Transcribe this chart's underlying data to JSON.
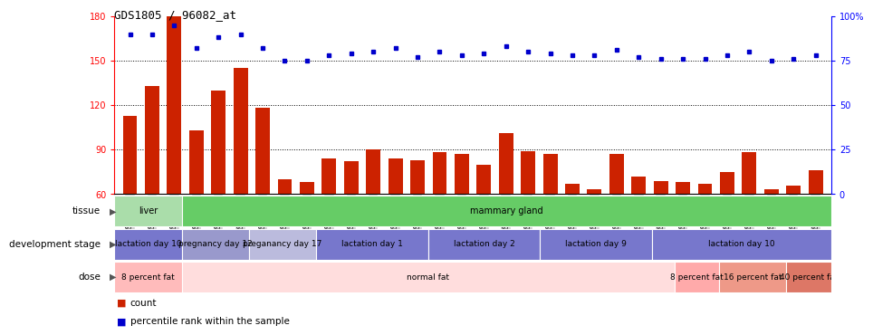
{
  "title": "GDS1805 / 96082_at",
  "samples": [
    "GSM96229",
    "GSM96230",
    "GSM96231",
    "GSM96217",
    "GSM96218",
    "GSM96219",
    "GSM96220",
    "GSM96225",
    "GSM96226",
    "GSM96227",
    "GSM96228",
    "GSM96221",
    "GSM96222",
    "GSM96223",
    "GSM96224",
    "GSM96209",
    "GSM96210",
    "GSM96211",
    "GSM96212",
    "GSM96213",
    "GSM96214",
    "GSM96215",
    "GSM96216",
    "GSM96203",
    "GSM96204",
    "GSM96205",
    "GSM96206",
    "GSM96207",
    "GSM96208",
    "GSM96200",
    "GSM96201",
    "GSM96202"
  ],
  "counts": [
    113,
    133,
    180,
    103,
    130,
    145,
    118,
    70,
    68,
    84,
    82,
    90,
    84,
    83,
    88,
    87,
    80,
    101,
    89,
    87,
    67,
    63,
    87,
    72,
    69,
    68,
    67,
    75,
    88,
    63,
    66,
    76
  ],
  "percentile_ranks": [
    90,
    90,
    95,
    82,
    88,
    90,
    82,
    75,
    75,
    78,
    79,
    80,
    82,
    77,
    80,
    78,
    79,
    83,
    80,
    79,
    78,
    78,
    81,
    77,
    76,
    76,
    76,
    78,
    80,
    75,
    76,
    78
  ],
  "ylim_left": [
    60,
    180
  ],
  "ylim_right": [
    0,
    100
  ],
  "yticks_left": [
    60,
    90,
    120,
    150,
    180
  ],
  "yticks_right": [
    0,
    25,
    50,
    75,
    100
  ],
  "bar_color": "#cc2200",
  "dot_color": "#0000cc",
  "tissue_segments": [
    {
      "label": "liver",
      "start": 0,
      "end": 3,
      "color": "#aaddaa"
    },
    {
      "label": "mammary gland",
      "start": 3,
      "end": 32,
      "color": "#66cc66"
    }
  ],
  "dev_segments": [
    {
      "label": "lactation day 10",
      "start": 0,
      "end": 3,
      "color": "#7777cc"
    },
    {
      "label": "pregnancy day 12",
      "start": 3,
      "end": 6,
      "color": "#9999cc"
    },
    {
      "label": "preganancy day 17",
      "start": 6,
      "end": 9,
      "color": "#bbbbdd"
    },
    {
      "label": "lactation day 1",
      "start": 9,
      "end": 14,
      "color": "#7777cc"
    },
    {
      "label": "lactation day 2",
      "start": 14,
      "end": 19,
      "color": "#7777cc"
    },
    {
      "label": "lactation day 9",
      "start": 19,
      "end": 24,
      "color": "#7777cc"
    },
    {
      "label": "lactation day 10",
      "start": 24,
      "end": 32,
      "color": "#7777cc"
    }
  ],
  "dose_segments": [
    {
      "label": "8 percent fat",
      "start": 0,
      "end": 3,
      "color": "#ffbbbb"
    },
    {
      "label": "normal fat",
      "start": 3,
      "end": 25,
      "color": "#ffdddd"
    },
    {
      "label": "8 percent fat",
      "start": 25,
      "end": 27,
      "color": "#ffaaaa"
    },
    {
      "label": "16 percent fat",
      "start": 27,
      "end": 30,
      "color": "#ee9988"
    },
    {
      "label": "40 percent fat",
      "start": 30,
      "end": 32,
      "color": "#dd7766"
    }
  ],
  "grid_dotted_at": [
    90,
    120,
    150
  ],
  "xtick_bg": "#cccccc",
  "row_labels": [
    "tissue",
    "development stage",
    "dose"
  ],
  "legend_labels": [
    "count",
    "percentile rank within the sample"
  ]
}
